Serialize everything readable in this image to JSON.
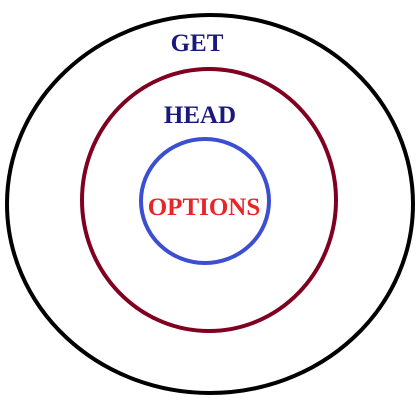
{
  "diagram": {
    "rings": [
      {
        "label": "GET",
        "stroke": "#000000",
        "label_color": "#1a1a7e"
      },
      {
        "label": "HEAD",
        "stroke": "#800020",
        "label_color": "#1a1a7e"
      },
      {
        "label": "OPTIONS",
        "stroke": "#3d4fd1",
        "label_color": "#e8262a"
      }
    ]
  }
}
